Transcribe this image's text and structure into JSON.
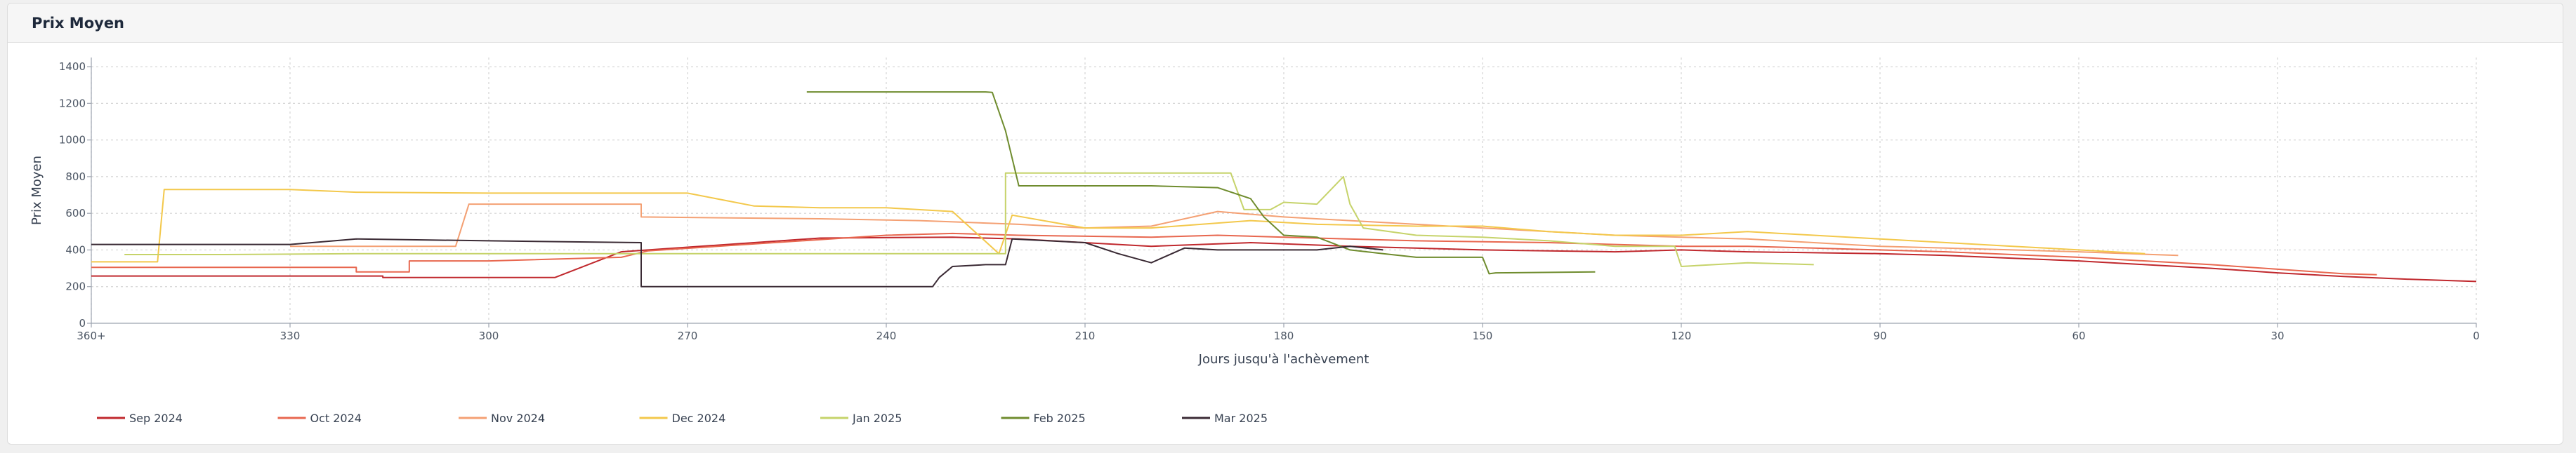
{
  "panel": {
    "title": "Prix Moyen"
  },
  "chart_data": {
    "type": "line",
    "title": "",
    "xlabel": "Jours jusqu'à l'achèvement",
    "ylabel": "Prix Moyen",
    "x_reversed": true,
    "xlim": [
      360,
      0
    ],
    "ylim": [
      0,
      1450
    ],
    "x_ticks": [
      360,
      330,
      300,
      270,
      240,
      210,
      180,
      150,
      120,
      90,
      60,
      30,
      0
    ],
    "x_tick_labels": [
      "360+",
      "330",
      "300",
      "270",
      "240",
      "210",
      "180",
      "150",
      "120",
      "90",
      "60",
      "30",
      "0"
    ],
    "y_ticks": [
      0,
      200,
      400,
      600,
      800,
      1000,
      1200,
      1400
    ],
    "grid": true,
    "legend_position": "bottom-left",
    "series": [
      {
        "name": "Sep 2024",
        "color": "#c0282d",
        "x": [
          360,
          316,
          316,
          290,
          280,
          250,
          230,
          220,
          200,
          185,
          170,
          150,
          130,
          120,
          110,
          90,
          80,
          70,
          60,
          50,
          40,
          30,
          20,
          10,
          0
        ],
        "y": [
          258,
          258,
          250,
          250,
          390,
          465,
          470,
          460,
          420,
          440,
          420,
          400,
          390,
          400,
          390,
          380,
          370,
          355,
          340,
          320,
          300,
          275,
          255,
          240,
          228
        ]
      },
      {
        "name": "Oct 2024",
        "color": "#e8674f",
        "x": [
          360,
          320,
          320,
          312,
          312,
          300,
          280,
          276,
          240,
          230,
          220,
          200,
          190,
          180,
          160,
          140,
          120,
          110,
          100,
          80,
          60,
          40,
          20,
          15
        ],
        "y": [
          305,
          305,
          280,
          280,
          340,
          340,
          360,
          395,
          480,
          490,
          480,
          470,
          480,
          470,
          450,
          440,
          420,
          420,
          410,
          390,
          360,
          320,
          270,
          265
        ]
      },
      {
        "name": "Nov 2024",
        "color": "#f4a073",
        "x": [
          330,
          305,
          303,
          277,
          277,
          250,
          235,
          220,
          210,
          200,
          190,
          180,
          170,
          160,
          150,
          140,
          130,
          120,
          110,
          100,
          90,
          80,
          70,
          60,
          45
        ],
        "y": [
          420,
          420,
          650,
          650,
          580,
          570,
          560,
          540,
          520,
          530,
          610,
          580,
          560,
          540,
          520,
          500,
          480,
          470,
          460,
          440,
          420,
          410,
          400,
          390,
          370
        ]
      },
      {
        "name": "Dec 2024",
        "color": "#f3c84b",
        "x": [
          360,
          350,
          349,
          330,
          320,
          300,
          270,
          260,
          250,
          240,
          230,
          223,
          221,
          210,
          200,
          185,
          175,
          160,
          150,
          140,
          130,
          120,
          110,
          100,
          90,
          80,
          70,
          60,
          50
        ],
        "y": [
          335,
          335,
          730,
          730,
          715,
          710,
          710,
          640,
          630,
          630,
          610,
          380,
          590,
          520,
          520,
          560,
          540,
          530,
          530,
          500,
          480,
          480,
          500,
          480,
          460,
          440,
          420,
          400,
          380
        ]
      },
      {
        "name": "Jan 2025",
        "color": "#c6d36a",
        "x": [
          355,
          340,
          320,
          300,
          280,
          260,
          240,
          225,
          222,
          222,
          210,
          200,
          188,
          186,
          182,
          180,
          175,
          171,
          170,
          168,
          160,
          150,
          140,
          130,
          121,
          120,
          110,
          100
        ],
        "y": [
          375,
          375,
          380,
          380,
          380,
          380,
          380,
          380,
          380,
          820,
          820,
          820,
          820,
          620,
          620,
          660,
          650,
          800,
          650,
          520,
          480,
          470,
          450,
          420,
          420,
          310,
          330,
          320
        ]
      },
      {
        "name": "Feb 2025",
        "color": "#6f8c2e",
        "x": [
          252,
          225,
          224,
          222,
          220,
          200,
          190,
          185,
          183,
          180,
          175,
          170,
          165,
          160,
          150,
          149,
          148,
          133
        ],
        "y": [
          1262,
          1262,
          1260,
          1050,
          750,
          750,
          740,
          680,
          580,
          480,
          470,
          400,
          380,
          360,
          360,
          270,
          275,
          280
        ]
      },
      {
        "name": "Mar 2025",
        "color": "#3a2a34",
        "x": [
          360,
          330,
          320,
          300,
          277,
          277,
          233,
          232,
          230,
          225,
          222,
          221,
          210,
          205,
          200,
          195,
          190,
          185,
          180,
          175,
          170,
          165
        ],
        "y": [
          430,
          430,
          460,
          450,
          440,
          200,
          200,
          250,
          310,
          320,
          320,
          460,
          440,
          380,
          330,
          410,
          400,
          400,
          400,
          400,
          420,
          400
        ]
      }
    ]
  }
}
